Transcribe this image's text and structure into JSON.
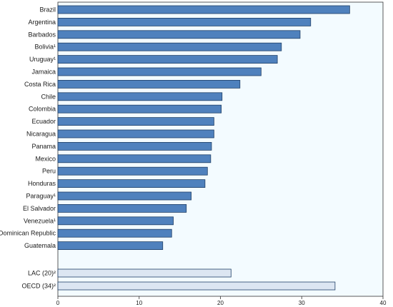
{
  "chart_data": {
    "type": "bar",
    "orientation": "horizontal",
    "title": "",
    "xlabel": "",
    "ylabel": "",
    "xlim": [
      0,
      40
    ],
    "xticks": [
      0,
      10,
      20,
      30,
      40
    ],
    "grid": false,
    "colors": {
      "bar": "#4f81bd",
      "bar_stroke": "#1f3f66",
      "aggregate_bar": "#dce6f2",
      "plot_background": "#f3fbff",
      "axis": "#333333"
    },
    "categories": [
      "Brazil",
      "Argentina",
      "Barbados",
      "Bolivia¹",
      "Uruguay¹",
      "Jamaica",
      "Costa Rica",
      "Chile",
      "Colombia",
      "Ecuador",
      "Nicaragua",
      "Panama",
      "Mexico",
      "Peru",
      "Honduras",
      "Paraguay¹",
      "El Salvador",
      "Venezuela¹",
      "Dominican Republic",
      "Guatemala"
    ],
    "values": [
      35.9,
      31.1,
      29.8,
      27.5,
      27.0,
      25.0,
      22.4,
      20.2,
      20.1,
      19.2,
      19.2,
      18.9,
      18.8,
      18.4,
      18.1,
      16.4,
      15.8,
      14.2,
      14.0,
      12.9
    ],
    "aggregates": [
      {
        "label": "LAC (20)²",
        "value": 21.3
      },
      {
        "label": "OECD (34)²",
        "value": 34.1
      }
    ]
  }
}
